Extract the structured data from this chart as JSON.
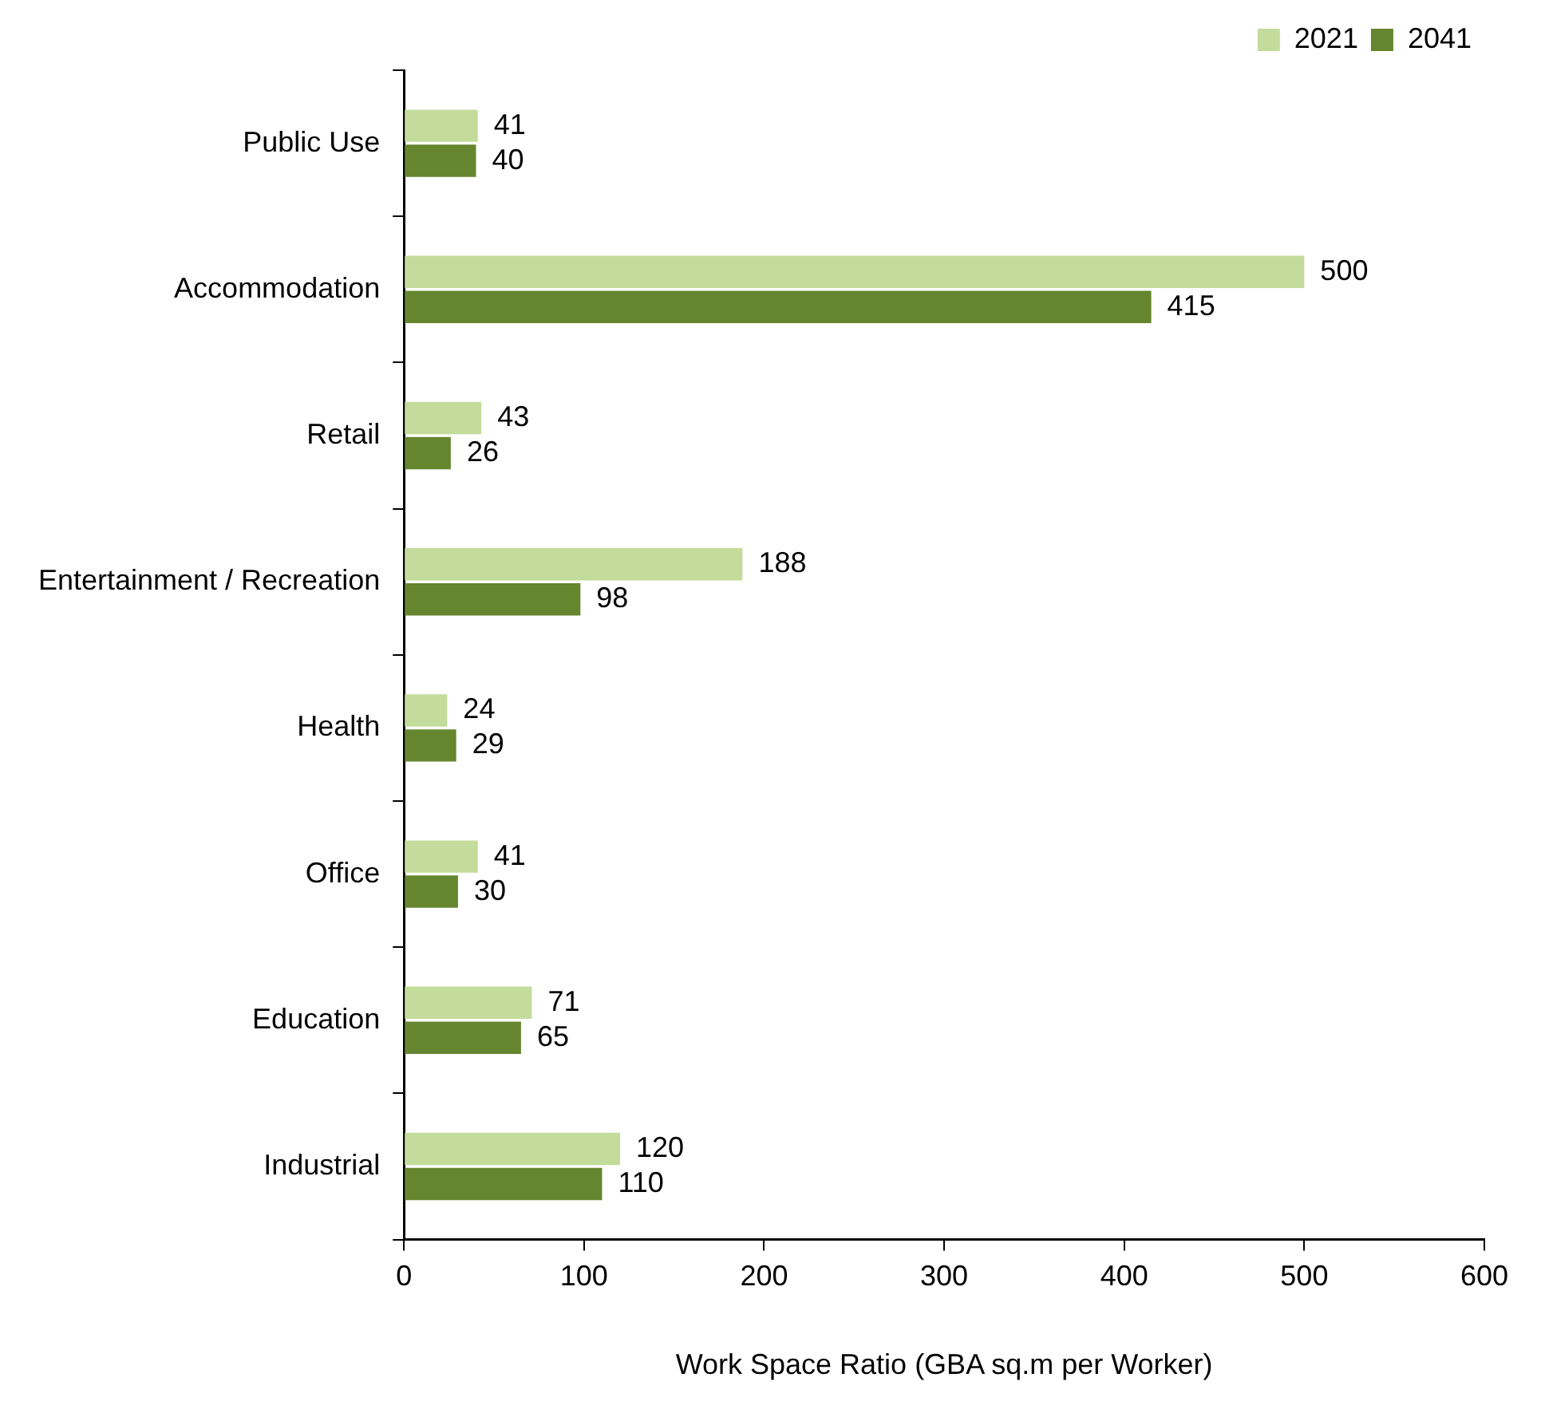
{
  "chart_data": {
    "type": "bar",
    "orientation": "horizontal",
    "xlabel": "Work Space Ratio (GBA sq.m per Worker)",
    "categories": [
      "Public Use",
      "Accommodation",
      "Retail",
      "Entertainment / Recreation",
      "Health",
      "Office",
      "Education",
      "Industrial"
    ],
    "series": [
      {
        "name": "2021",
        "color": "#c3dc9b",
        "values": [
          41,
          500,
          43,
          188,
          24,
          41,
          71,
          120
        ]
      },
      {
        "name": "2041",
        "color": "#65862f",
        "values": [
          40,
          415,
          26,
          98,
          29,
          30,
          65,
          110
        ]
      }
    ],
    "xlim": [
      0,
      600
    ],
    "xticks": [
      0,
      100,
      200,
      300,
      400,
      500,
      600
    ],
    "data_labels": true,
    "legend": "top right",
    "grid": false
  }
}
